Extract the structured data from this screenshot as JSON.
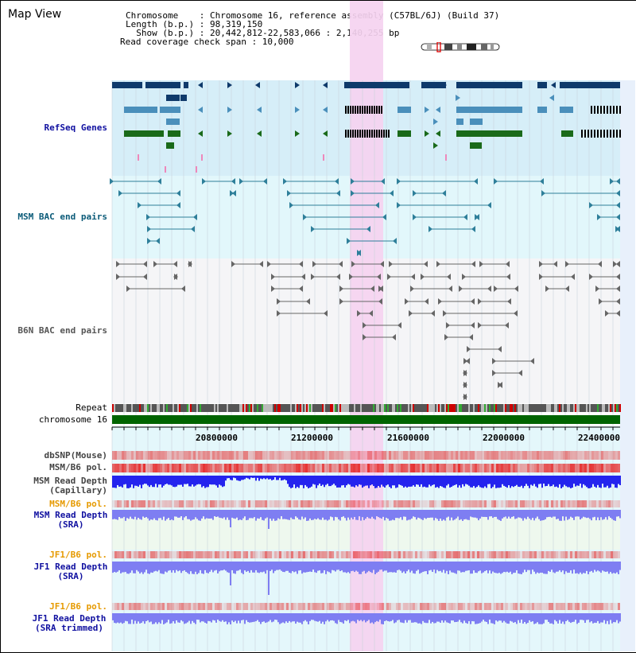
{
  "header": {
    "title": "Map View",
    "info_lines": [
      "Chromosome    : Chromosome 16, reference assembly (C57BL/6J) (Build 37)",
      "Length (b.p.) : 98,319,150",
      "  Show (b.p.) : 20,442,812-22,583,066 : 2,140,255 bp",
      "Read coverage check span : 10,000"
    ]
  },
  "tracks": {
    "refseq": "RefSeq Genes",
    "msm_bac": "MSM BAC end pairs",
    "b6n_bac": "B6N BAC end pairs",
    "repeat": "Repeat",
    "chromosome": "chromosome 16",
    "dbsnp": "dbSNP(Mouse)",
    "msm_pol1": "MSM/B6 pol.",
    "msm_depth_cap": [
      "MSM Read Depth",
      "(Capillary)"
    ],
    "msm_pol2": "MSM/B6 pol.",
    "msm_depth_sra": [
      "MSM Read Depth",
      "(SRA)"
    ],
    "jf1_pol1": "JF1/B6 pol.",
    "jf1_depth_sra": [
      "JF1 Read Depth",
      "(SRA)"
    ],
    "jf1_pol2": "JF1/B6 pol.",
    "jf1_depth_trim": [
      "JF1 Read Depth",
      "(SRA trimmed)"
    ]
  },
  "axis": {
    "ticks": [
      "20800000",
      "21200000",
      "21600000",
      "22000000",
      "22400000"
    ]
  },
  "colors": {
    "refseq_bg": "#d6eef8",
    "msm_bg": "#e2f7fb",
    "b6n_bg": "#f5f5f7",
    "highlight": "#f5d2f0",
    "gene_dark": "#0f3a6b",
    "gene_mid": "#4a8fbb",
    "gene_green": "#1a6a1a",
    "chrom_green": "#006400",
    "msm_link": "#2e7f9a",
    "b6n_link": "#666666",
    "depth_blue": "#2424ee",
    "depth_light": "#7e7ef2",
    "label_blue": "#1010a0",
    "label_orange": "#e69a00"
  }
}
